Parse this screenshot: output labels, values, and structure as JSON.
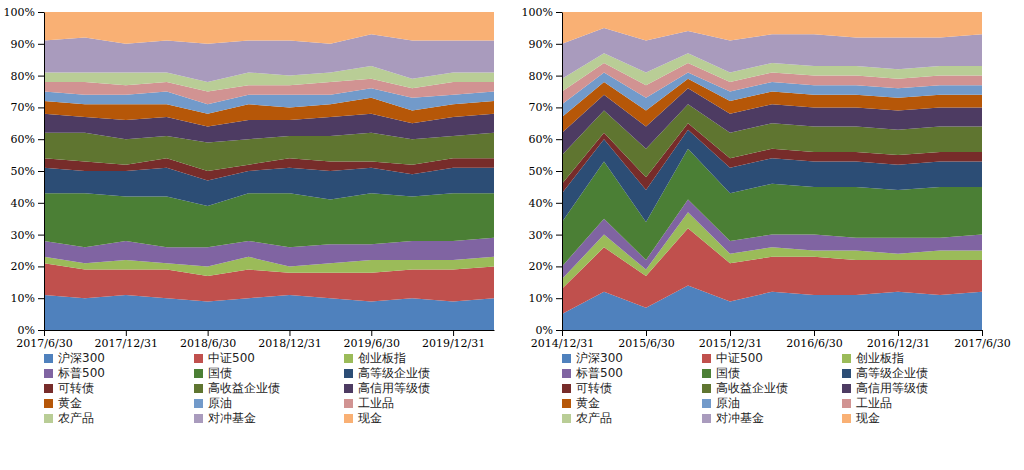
{
  "chart_data": [
    {
      "type": "area",
      "stacked": true,
      "grid": false,
      "legend": "bottom",
      "categories": [
        "2017/6/30",
        null,
        "2017/12/31",
        null,
        "2018/6/30",
        null,
        "2018/12/31",
        null,
        "2019/6/30",
        null,
        "2019/12/31",
        null
      ],
      "ylim": [
        0,
        100
      ],
      "yticks": [
        {
          "value": 0,
          "label": "0%"
        },
        {
          "value": 10,
          "label": "10%"
        },
        {
          "value": 20,
          "label": "20%"
        },
        {
          "value": 30,
          "label": "30%"
        },
        {
          "value": 40,
          "label": "40%"
        },
        {
          "value": 50,
          "label": "50%"
        },
        {
          "value": 60,
          "label": "60%"
        },
        {
          "value": 70,
          "label": "70%"
        },
        {
          "value": 80,
          "label": "80%"
        },
        {
          "value": 90,
          "label": "90%"
        },
        {
          "value": 100,
          "label": "100%"
        }
      ],
      "series": [
        {
          "name": "沪深300",
          "color": "#4f81bd",
          "values": [
            11,
            10,
            11,
            10,
            9,
            10,
            11,
            10,
            9,
            10,
            9,
            10
          ]
        },
        {
          "name": "中证500",
          "color": "#c0504d",
          "values": [
            10,
            9,
            8,
            9,
            8,
            9,
            7,
            8,
            9,
            9,
            10,
            10
          ]
        },
        {
          "name": "创业板指",
          "color": "#9bbb59",
          "values": [
            2,
            2,
            3,
            2,
            3,
            4,
            2,
            3,
            4,
            3,
            3,
            3
          ]
        },
        {
          "name": "标普500",
          "color": "#8064a2",
          "values": [
            5,
            5,
            6,
            5,
            6,
            5,
            6,
            6,
            5,
            6,
            6,
            6
          ]
        },
        {
          "name": "国债",
          "color": "#4b7f35",
          "values": [
            15,
            17,
            14,
            16,
            13,
            15,
            17,
            14,
            16,
            14,
            15,
            14
          ]
        },
        {
          "name": "高等级企业债",
          "color": "#2c4d75",
          "values": [
            8,
            7,
            8,
            9,
            8,
            7,
            8,
            9,
            8,
            7,
            8,
            8
          ]
        },
        {
          "name": "可转债",
          "color": "#772c2a",
          "values": [
            3,
            3,
            2,
            3,
            3,
            2,
            3,
            3,
            2,
            3,
            3,
            3
          ]
        },
        {
          "name": "高收益企业债",
          "color": "#5f7530",
          "values": [
            8,
            9,
            8,
            7,
            9,
            8,
            7,
            8,
            9,
            8,
            7,
            8
          ]
        },
        {
          "name": "高信用等级债",
          "color": "#4d3b62",
          "values": [
            6,
            5,
            6,
            6,
            5,
            6,
            5,
            6,
            6,
            5,
            6,
            6
          ]
        },
        {
          "name": "黄金",
          "color": "#b65708",
          "values": [
            4,
            4,
            5,
            4,
            4,
            5,
            4,
            4,
            5,
            4,
            4,
            4
          ]
        },
        {
          "name": "原油",
          "color": "#729aca",
          "values": [
            3,
            3,
            3,
            4,
            3,
            3,
            4,
            3,
            3,
            4,
            3,
            3
          ]
        },
        {
          "name": "工业品",
          "color": "#d19392",
          "values": [
            3,
            4,
            3,
            3,
            4,
            3,
            3,
            4,
            3,
            3,
            4,
            3
          ]
        },
        {
          "name": "农产品",
          "color": "#b9cd96",
          "values": [
            3,
            3,
            4,
            3,
            3,
            4,
            3,
            3,
            4,
            3,
            3,
            3
          ]
        },
        {
          "name": "对冲基金",
          "color": "#a99bbd",
          "values": [
            10,
            11,
            9,
            10,
            12,
            10,
            11,
            9,
            10,
            12,
            10,
            10
          ]
        },
        {
          "name": "现金",
          "color": "#f9b074",
          "values": [
            9,
            8,
            10,
            9,
            10,
            9,
            9,
            10,
            7,
            9,
            9,
            9
          ]
        }
      ]
    },
    {
      "type": "area",
      "stacked": true,
      "grid": false,
      "legend": "bottom",
      "categories": [
        "2014/12/31",
        null,
        "2015/6/30",
        null,
        "2015/12/31",
        null,
        "2016/6/30",
        null,
        "2016/12/31",
        null,
        "2017/6/30"
      ],
      "ylim": [
        0,
        100
      ],
      "yticks": [
        {
          "value": 0,
          "label": "0%"
        },
        {
          "value": 10,
          "label": "10%"
        },
        {
          "value": 20,
          "label": "20%"
        },
        {
          "value": 30,
          "label": "30%"
        },
        {
          "value": 40,
          "label": "40%"
        },
        {
          "value": 50,
          "label": "50%"
        },
        {
          "value": 60,
          "label": "60%"
        },
        {
          "value": 70,
          "label": "70%"
        },
        {
          "value": 80,
          "label": "80%"
        },
        {
          "value": 90,
          "label": "90%"
        },
        {
          "value": 100,
          "label": "100%"
        }
      ],
      "series": [
        {
          "name": "沪深300",
          "color": "#4f81bd",
          "values": [
            5,
            12,
            7,
            14,
            9,
            12,
            11,
            11,
            12,
            11,
            12
          ]
        },
        {
          "name": "中证500",
          "color": "#c0504d",
          "values": [
            8,
            14,
            10,
            18,
            12,
            11,
            12,
            11,
            10,
            11,
            10
          ]
        },
        {
          "name": "创业板指",
          "color": "#9bbb59",
          "values": [
            3,
            4,
            2,
            5,
            3,
            3,
            2,
            3,
            2,
            3,
            3
          ]
        },
        {
          "name": "标普500",
          "color": "#8064a2",
          "values": [
            4,
            5,
            3,
            4,
            4,
            4,
            5,
            4,
            5,
            4,
            5
          ]
        },
        {
          "name": "国债",
          "color": "#4b7f35",
          "values": [
            14,
            18,
            12,
            16,
            15,
            16,
            15,
            16,
            15,
            16,
            15
          ]
        },
        {
          "name": "高等级企业债",
          "color": "#2c4d75",
          "values": [
            9,
            7,
            10,
            6,
            8,
            8,
            8,
            8,
            8,
            8,
            8
          ]
        },
        {
          "name": "可转债",
          "color": "#772c2a",
          "values": [
            3,
            2,
            4,
            2,
            3,
            3,
            3,
            3,
            3,
            3,
            3
          ]
        },
        {
          "name": "高收益企业债",
          "color": "#5f7530",
          "values": [
            9,
            7,
            9,
            6,
            8,
            8,
            8,
            8,
            8,
            8,
            8
          ]
        },
        {
          "name": "高信用等级债",
          "color": "#4d3b62",
          "values": [
            7,
            5,
            7,
            5,
            6,
            6,
            6,
            6,
            6,
            6,
            6
          ]
        },
        {
          "name": "黄金",
          "color": "#b65708",
          "values": [
            5,
            4,
            5,
            3,
            4,
            4,
            4,
            4,
            4,
            4,
            4
          ]
        },
        {
          "name": "原油",
          "color": "#729aca",
          "values": [
            4,
            3,
            4,
            2,
            3,
            3,
            3,
            3,
            3,
            3,
            3
          ]
        },
        {
          "name": "工业品",
          "color": "#d19392",
          "values": [
            4,
            3,
            4,
            3,
            3,
            3,
            3,
            3,
            3,
            3,
            3
          ]
        },
        {
          "name": "农产品",
          "color": "#b9cd96",
          "values": [
            4,
            3,
            4,
            3,
            3,
            3,
            3,
            3,
            3,
            3,
            3
          ]
        },
        {
          "name": "对冲基金",
          "color": "#a99bbd",
          "values": [
            11,
            8,
            10,
            7,
            10,
            9,
            10,
            9,
            10,
            9,
            10
          ]
        },
        {
          "name": "现金",
          "color": "#f9b074",
          "values": [
            10,
            5,
            9,
            6,
            9,
            7,
            7,
            8,
            8,
            8,
            7
          ]
        }
      ]
    }
  ]
}
